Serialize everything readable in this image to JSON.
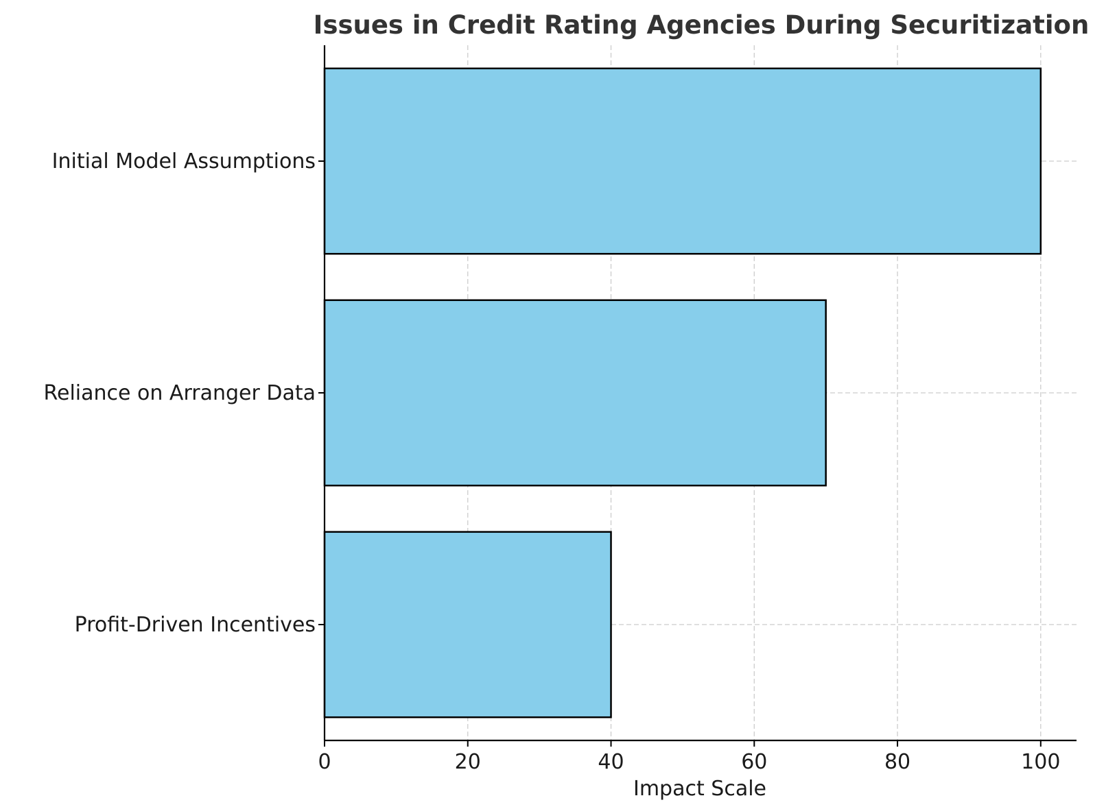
{
  "chart_data": {
    "type": "bar",
    "orientation": "horizontal",
    "title": "Issues in Credit Rating Agencies During Securitization",
    "xlabel": "Impact Scale",
    "ylabel": "",
    "categories": [
      "Initial Model Assumptions",
      "Reliance on Arranger Data",
      "Profit-Driven Incentives"
    ],
    "values": [
      100,
      70,
      40
    ],
    "xlim": [
      0,
      105
    ],
    "xticks": [
      0,
      20,
      40,
      60,
      80,
      100
    ],
    "grid": true,
    "bar_color": "#87CEEB",
    "edge_color": "#000000"
  }
}
